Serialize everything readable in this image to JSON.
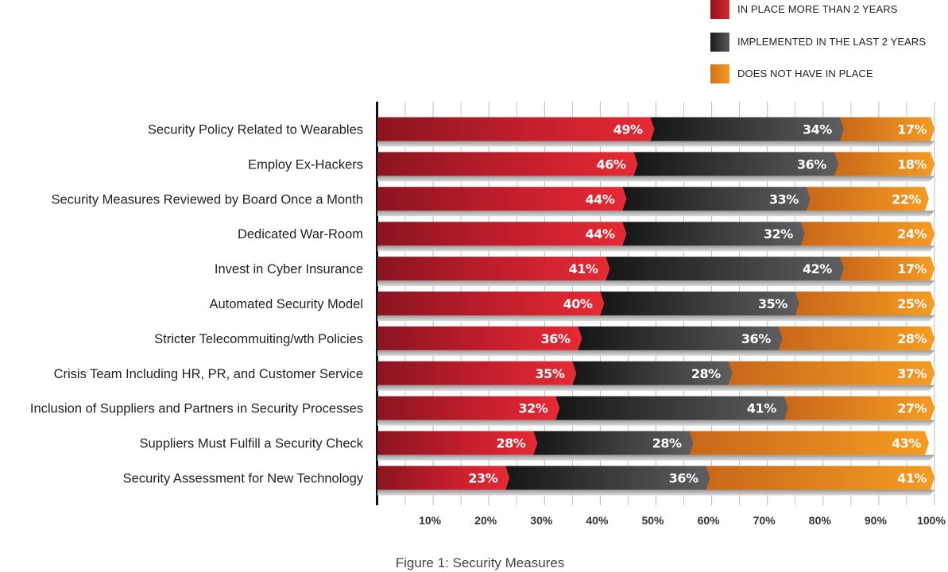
{
  "legend": [
    {
      "label": "IN PLACE MORE THAN 2 YEARS",
      "color": "#c8202e"
    },
    {
      "label": "IMPLEMENTED IN THE LAST 2 YEARS",
      "color": "#3a3a3c"
    },
    {
      "label": "DOES NOT HAVE IN PLACE",
      "color": "#f0901e"
    }
  ],
  "caption": "Figure 1: Security Measures",
  "chart_data": {
    "type": "bar",
    "orientation": "horizontal",
    "stacked": true,
    "categories": [
      "Security Policy Related to Wearables",
      "Employ Ex-Hackers",
      "Security Measures Reviewed by Board Once a Month",
      "Dedicated War-Room",
      "Invest in Cyber Insurance",
      "Automated Security Model",
      "Stricter Telecommuiting/wth Policies",
      "Crisis Team Including HR, PR, and Customer Service",
      "Inclusion of Suppliers and Partners in Security Processes",
      "Suppliers Must Fulfill a Security Check",
      "Security Assessment for New Technology"
    ],
    "series": [
      {
        "name": "IN PLACE MORE THAN 2 YEARS",
        "color": "#c8202e",
        "values": [
          49,
          46,
          44,
          44,
          41,
          40,
          36,
          35,
          32,
          28,
          23
        ]
      },
      {
        "name": "IMPLEMENTED IN THE LAST 2 YEARS",
        "color": "#3a3a3c",
        "values": [
          34,
          36,
          33,
          32,
          42,
          35,
          36,
          28,
          41,
          28,
          36
        ]
      },
      {
        "name": "DOES NOT HAVE IN PLACE",
        "color": "#f0901e",
        "values": [
          17,
          18,
          22,
          24,
          17,
          25,
          28,
          37,
          27,
          43,
          41
        ]
      }
    ],
    "data_labels": [
      [
        "49%",
        "34%",
        "17%"
      ],
      [
        "46%",
        "36%",
        "18%"
      ],
      [
        "44%",
        "33%",
        "22%"
      ],
      [
        "44%",
        "32%",
        "24%"
      ],
      [
        "41%",
        "42%",
        "17%"
      ],
      [
        "40%",
        "35%",
        "25%"
      ],
      [
        "36%",
        "36%",
        "28%"
      ],
      [
        "35%",
        "28%",
        "37%"
      ],
      [
        "32%",
        "41%",
        "27%"
      ],
      [
        "28%",
        "28%",
        "43%"
      ],
      [
        "23%",
        "36%",
        "41%"
      ]
    ],
    "xticks": [
      "10%",
      "20%",
      "30%",
      "40%",
      "50%",
      "60%",
      "70%",
      "80%",
      "90%",
      "100%"
    ],
    "xlim": [
      0,
      100
    ],
    "grid": true,
    "legend_position": "top-right"
  }
}
